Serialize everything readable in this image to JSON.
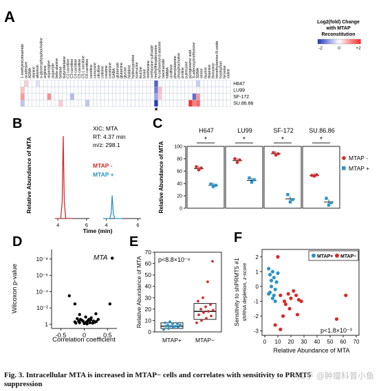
{
  "panel_letters": {
    "A": "A",
    "B": "B",
    "C": "C",
    "D": "D",
    "E": "E",
    "F": "F"
  },
  "caption": {
    "line1": "Fig. 3. Intracellular MTA is increased in MTAP− cells and correlates with sensitivity to PRMT5",
    "line2": "suppression"
  },
  "watermark": "知乎 @肿瘤科普小鱼",
  "colors": {
    "mtap_neg": "#d42a2a",
    "mtap_pos": "#2a93c8",
    "heat_neg": "#2c3fb8",
    "heat_pos": "#d01c1c"
  },
  "chart_data": [
    {
      "panel": "A",
      "type": "heatmap",
      "title": "Log2(fold) Change with MTAP Reconstitution",
      "scale": {
        "min": -2,
        "mid": 0,
        "max": 2,
        "labels": [
          "-2",
          "0",
          "+2"
        ]
      },
      "columns": [
        "1-methylnicotinamide",
        "acadesine",
        "ADMA",
        "alanine",
        "allantoin",
        "a-glycerophosphocholine",
        "arginine",
        "asparagine",
        "aspartate",
        "beta-alanine",
        "betaine",
        "butyrobetaine",
        "C2 carnitine",
        "C3 carnitine",
        "C4 carnitine",
        "C5 carnitine",
        "C5:1 carnitine",
        "C6 carnitine",
        "carnitine",
        "carnosine",
        "citrulline",
        "cotinine",
        "creatine",
        "creatinine",
        "GABA",
        "glutamate",
        "glutamine",
        "glycine",
        "histidine",
        "hydroxyproline",
        "isoleucine",
        "leucine",
        "lysine",
        "methionine",
        "methionine sulfoxide",
        "methylthioadenosine",
        "N-carbamoyl-b-alanine",
        "niacinamide",
        "NMMA",
        "ornithine",
        "phenylalanine",
        "phosphocholine",
        "proline",
        "putrescine",
        "pyroglutamic acid",
        "S-adenosylmethionine",
        "SDMA",
        "serine",
        "taurine",
        "thiamine",
        "threonine",
        "trimethylamine-N-oxide",
        "tryptophan",
        "tyrosine",
        "valine"
      ],
      "rows": [
        "H647",
        "LU99",
        "SF-172",
        "SU.86.86"
      ],
      "values": [
        [
          0,
          0.5,
          0,
          0,
          -0.3,
          0,
          0,
          0,
          0,
          0,
          0,
          0,
          0,
          0,
          0,
          0,
          0,
          0,
          0,
          0,
          0,
          0,
          0,
          0,
          0,
          0,
          0,
          0,
          0,
          0,
          0,
          0,
          0,
          0,
          0,
          -1.6,
          0,
          0,
          0,
          0,
          0,
          0,
          0,
          0,
          0,
          0,
          -0.5,
          0,
          0,
          0,
          0,
          0,
          0,
          0,
          0
        ],
        [
          0.6,
          0,
          0,
          0,
          0,
          0,
          0,
          0,
          0,
          0,
          0,
          0,
          0,
          0,
          0,
          0,
          0,
          0,
          0,
          0,
          0,
          0,
          0,
          0,
          0,
          0,
          0,
          0,
          0,
          0,
          0,
          0,
          0,
          0,
          0,
          -1.3,
          0.6,
          0,
          0,
          0,
          0,
          0,
          0,
          0,
          0,
          0,
          0,
          0,
          0,
          0,
          0,
          0,
          0,
          0,
          0
        ],
        [
          1.0,
          0,
          0,
          0,
          0,
          0,
          0,
          1.1,
          0,
          0,
          0,
          0,
          0,
          -0.7,
          0,
          0,
          0,
          0,
          0,
          0,
          0,
          0,
          0,
          0,
          0,
          0,
          0,
          0,
          0,
          0,
          0,
          0,
          0,
          0,
          0,
          -0.9,
          0.5,
          0,
          0,
          0,
          0,
          0,
          0,
          0,
          0,
          -1.5,
          1.0,
          0,
          0,
          0,
          0,
          0,
          0,
          0,
          0
        ],
        [
          -0.6,
          0,
          0,
          0,
          0,
          0,
          0,
          0,
          0,
          0,
          0.5,
          0,
          0,
          0,
          0,
          0,
          0,
          -0.6,
          0,
          0,
          0,
          0,
          0,
          0,
          0,
          0,
          0,
          0,
          0,
          0,
          0,
          0,
          0,
          0,
          0,
          -2.0,
          0,
          0,
          0,
          0,
          0,
          0,
          0,
          0,
          2.0,
          1.2,
          1.5,
          0,
          0,
          0,
          0,
          0,
          0,
          0,
          0
        ]
      ],
      "annotation": "*"
    },
    {
      "panel": "B",
      "type": "line",
      "xlabel": "Time (min)",
      "ylabel": "Relative Abundance of MTA",
      "xticks": [
        "4",
        "6",
        "4",
        "6"
      ],
      "info": [
        "XIC: MTA",
        "RT: 4.37 min",
        "m/z: 298.1"
      ],
      "series": [
        {
          "name": "MTAP -",
          "x": [
            3.8,
            4.2,
            4.3,
            4.37,
            4.45,
            4.55,
            5.0
          ],
          "y": [
            0,
            0,
            20,
            100,
            20,
            0,
            0
          ]
        },
        {
          "name": "MTAP +",
          "x": [
            3.8,
            4.2,
            4.3,
            4.37,
            4.45,
            4.55,
            5.0
          ],
          "y": [
            0,
            0,
            5,
            28,
            5,
            0,
            0
          ]
        }
      ]
    },
    {
      "panel": "C",
      "type": "scatter",
      "ylabel": "Relative Abundance of MTA",
      "ylim": [
        0,
        100
      ],
      "yticks": [
        "0",
        "20",
        "40",
        "60",
        "80",
        "100"
      ],
      "groups": [
        "H647",
        "LU99",
        "SF-172",
        "SU.86.86"
      ],
      "significance": [
        "*",
        "*",
        "*",
        "*"
      ],
      "series": [
        {
          "name": "MTAP -",
          "means": [
            64,
            77,
            88,
            53
          ],
          "points": [
            [
              67,
              62,
              65
            ],
            [
              80,
              74,
              78
            ],
            [
              90,
              86,
              88
            ],
            [
              53,
              52,
              54
            ]
          ]
        },
        {
          "name": "MTAP +",
          "means": [
            37,
            45,
            15,
            10
          ],
          "points": [
            [
              39,
              35,
              37
            ],
            [
              49,
              42,
              46
            ],
            [
              22,
              10,
              14
            ],
            [
              16,
              5,
              9
            ]
          ]
        }
      ]
    },
    {
      "panel": "D",
      "type": "scatter",
      "xlabel": "Correlation coefficient",
      "ylabel": "Wilcoxon p-value",
      "label": "MTA",
      "xticks": [
        "-0.5",
        "0",
        "0.5"
      ],
      "yticks": [
        "10⁻⁸",
        "10⁻⁶",
        "10⁻⁴",
        "10⁻²",
        "1"
      ],
      "points": [
        [
          0.6,
          -8.1
        ],
        [
          -0.32,
          -3.5
        ],
        [
          -0.2,
          -2.5
        ],
        [
          0.55,
          -2.5
        ],
        [
          -0.1,
          -1.2
        ],
        [
          0.25,
          -1.3
        ],
        [
          -0.05,
          -0.5
        ],
        [
          0.1,
          -0.6
        ],
        [
          0.15,
          -0.8
        ],
        [
          -0.15,
          -0.7
        ],
        [
          0.05,
          -0.3
        ],
        [
          -0.1,
          -0.2
        ],
        [
          0.2,
          -0.4
        ],
        [
          0.3,
          -0.6
        ],
        [
          0.0,
          -0.1
        ],
        [
          -0.2,
          -0.3
        ],
        [
          0.12,
          -0.2
        ],
        [
          0.08,
          -0.45
        ],
        [
          -0.02,
          -0.35
        ],
        [
          0.18,
          -0.15
        ],
        [
          0.22,
          -0.25
        ],
        [
          -0.08,
          -0.6
        ],
        [
          0.03,
          -0.9
        ],
        [
          0.14,
          -0.55
        ],
        [
          -0.12,
          -0.4
        ],
        [
          0.26,
          -0.35
        ],
        [
          -0.18,
          -0.15
        ],
        [
          0.06,
          -0.05
        ]
      ]
    },
    {
      "panel": "E",
      "type": "box",
      "ylabel": "Relative Abundance of MTA",
      "ylim": [
        0,
        70
      ],
      "yticks": [
        "0",
        "10",
        "20",
        "30",
        "40",
        "50",
        "60",
        "70"
      ],
      "pvalue": "p<8.8×10⁻⁸",
      "categories": [
        "MTAP+",
        "MTAP−"
      ],
      "series": [
        {
          "name": "MTAP+",
          "q1": 3,
          "median": 5,
          "q3": 8,
          "points": [
            2,
            3,
            4,
            4,
            5,
            5,
            5,
            6,
            6,
            7,
            7,
            8,
            9
          ]
        },
        {
          "name": "MTAP−",
          "q1": 11,
          "median": 18,
          "q3": 25,
          "points": [
            8,
            10,
            12,
            14,
            15,
            17,
            18,
            19,
            20,
            22,
            24,
            27,
            30,
            44,
            62
          ]
        }
      ]
    },
    {
      "panel": "F",
      "type": "scatter",
      "xlabel": "Relative Abundance of MTA",
      "ylabel": "Sensitivity to shPRMT5 #1 shRNA depletion, z-score",
      "ylabel_line1": "Sensitivity to shPRMT5 #1",
      "ylabel_line2": "shRNA depletion, z-score",
      "xticks": [
        "0",
        "10",
        "20",
        "30",
        "40",
        "50",
        "60",
        "70"
      ],
      "yticks": [
        "2",
        "1",
        "0",
        "-1",
        "-2",
        "-3"
      ],
      "pvalue": "p<1.8×10⁻³",
      "legend": [
        "MTAP+",
        "MTAP−"
      ],
      "series": [
        {
          "name": "MTAP+",
          "points": [
            [
              3,
              1.2
            ],
            [
              4,
              0.8
            ],
            [
              5,
              0.4
            ],
            [
              6,
              1.0
            ],
            [
              5,
              0.0
            ],
            [
              4,
              -0.4
            ],
            [
              7,
              0.6
            ],
            [
              8,
              -0.2
            ],
            [
              6,
              -0.8
            ],
            [
              3,
              -0.5
            ],
            [
              9,
              0.3
            ],
            [
              7,
              -0.6
            ],
            [
              10,
              0.9
            ],
            [
              8,
              -1.0
            ]
          ]
        },
        {
          "name": "MTAP−",
          "points": [
            [
              10,
              2.0
            ],
            [
              12,
              -0.6
            ],
            [
              15,
              -1.0
            ],
            [
              18,
              -0.5
            ],
            [
              20,
              -0.8
            ],
            [
              22,
              -0.3
            ],
            [
              24,
              -0.6
            ],
            [
              26,
              -0.9
            ],
            [
              28,
              -1.0
            ],
            [
              14,
              -2.0
            ],
            [
              16,
              -1.2
            ],
            [
              19,
              -1.5
            ],
            [
              25,
              -1.9
            ],
            [
              8,
              -2.6
            ],
            [
              12,
              -2.9
            ],
            [
              55,
              -2.2
            ],
            [
              62,
              -0.6
            ]
          ]
        }
      ]
    }
  ]
}
